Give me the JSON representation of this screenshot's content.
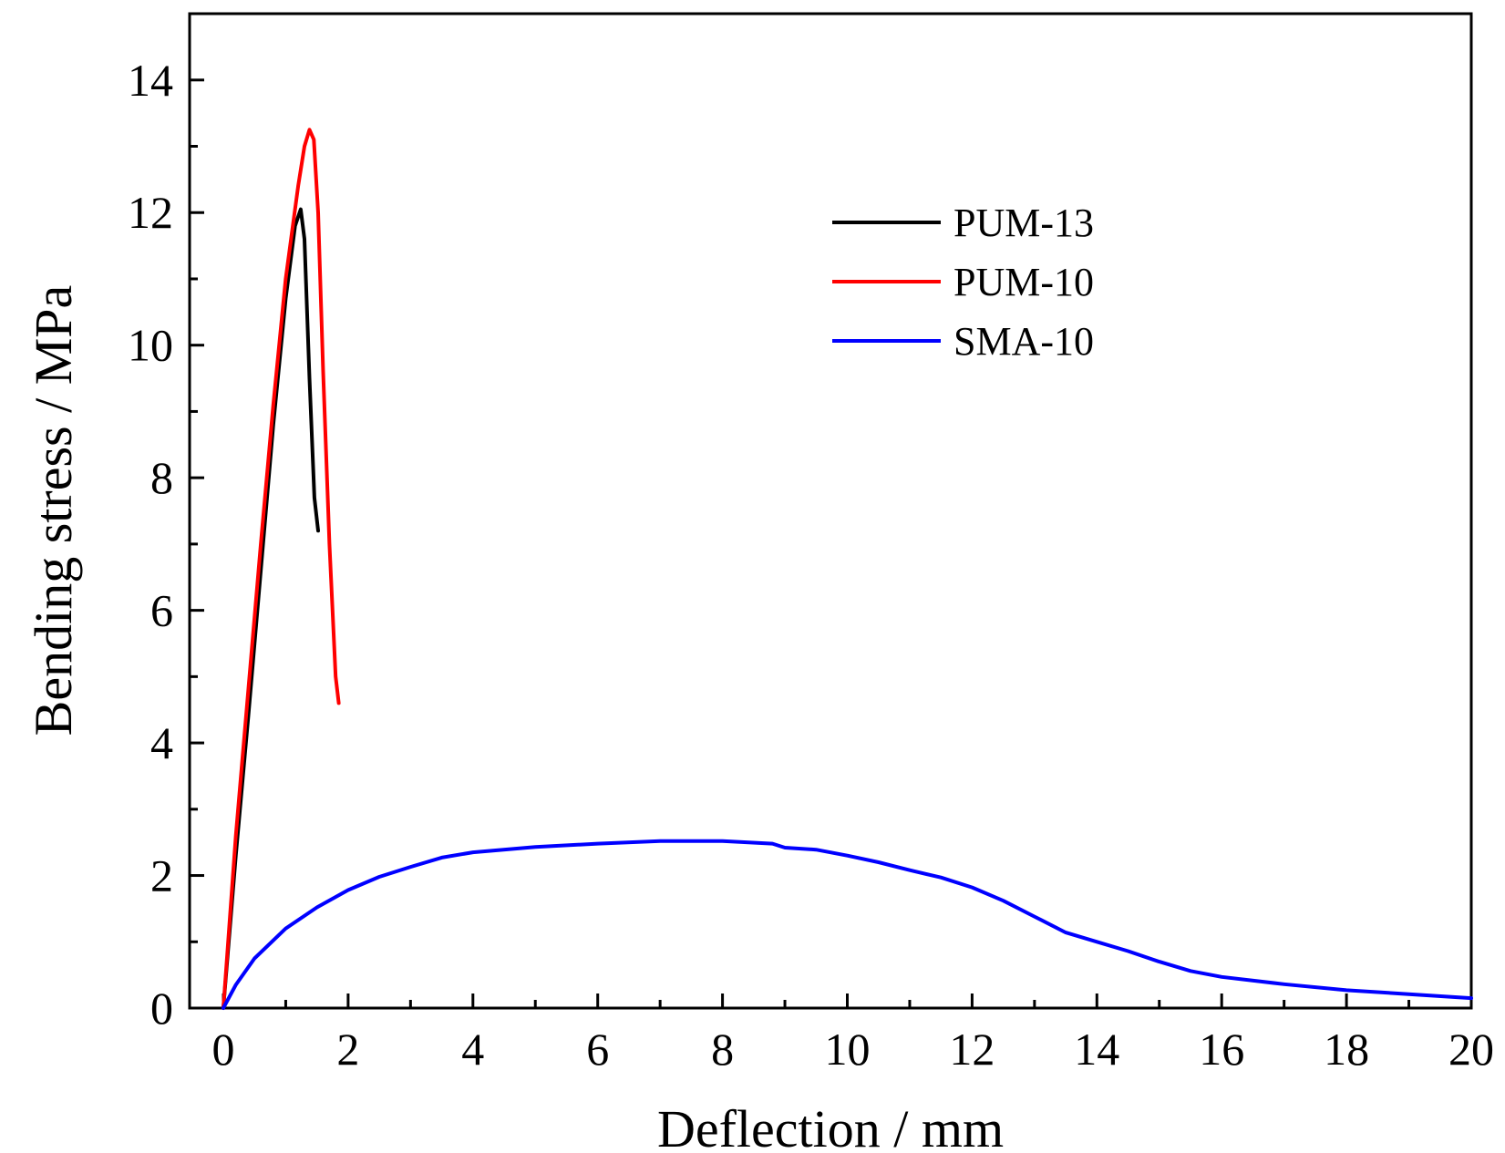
{
  "chart_data": {
    "type": "line",
    "title": "",
    "xlabel": "Deflection / mm",
    "ylabel": "Bending stress / MPa",
    "xlim": [
      -0.5,
      20
    ],
    "ylim": [
      0,
      15
    ],
    "x_major_ticks": [
      0,
      2,
      4,
      6,
      8,
      10,
      12,
      14,
      16,
      18,
      20
    ],
    "x_tick_labels": [
      "0",
      "2",
      "4",
      "6",
      "8",
      "10",
      "12",
      "14",
      "16",
      "18",
      "20"
    ],
    "y_major_ticks": [
      0,
      2,
      4,
      6,
      8,
      10,
      12,
      14
    ],
    "y_tick_labels": [
      "0",
      "2",
      "4",
      "6",
      "8",
      "10",
      "12",
      "14"
    ],
    "grid": false,
    "legend_position": "top-right",
    "series": [
      {
        "name": "PUM-13",
        "color": "#000000",
        "x": [
          0,
          0.2,
          0.4,
          0.6,
          0.8,
          1.0,
          1.15,
          1.24,
          1.3,
          1.38,
          1.46,
          1.52
        ],
        "y": [
          0,
          2.3,
          4.4,
          6.6,
          8.8,
          10.7,
          11.8,
          12.05,
          11.6,
          9.5,
          7.7,
          7.2
        ]
      },
      {
        "name": "PUM-10",
        "color": "#ff0000",
        "x": [
          0,
          0.2,
          0.4,
          0.6,
          0.8,
          1.0,
          1.2,
          1.3,
          1.38,
          1.45,
          1.52,
          1.6,
          1.7,
          1.8,
          1.85
        ],
        "y": [
          0,
          2.6,
          4.8,
          7.0,
          9.1,
          11.0,
          12.4,
          13.0,
          13.25,
          13.1,
          12.0,
          9.6,
          7.0,
          5.0,
          4.6
        ]
      },
      {
        "name": "SMA-10",
        "color": "#0000ff",
        "x": [
          0,
          0.2,
          0.5,
          1.0,
          1.5,
          2.0,
          2.5,
          3.0,
          3.5,
          4.0,
          5.0,
          6.0,
          7.0,
          8.0,
          8.8,
          9.0,
          9.5,
          10.0,
          10.5,
          11.0,
          11.5,
          12.0,
          12.5,
          13.0,
          13.5,
          14.0,
          14.5,
          15.0,
          15.5,
          16.0,
          17.0,
          18.0,
          19.0,
          20.0
        ],
        "y": [
          0,
          0.35,
          0.75,
          1.2,
          1.52,
          1.78,
          1.98,
          2.13,
          2.27,
          2.35,
          2.43,
          2.48,
          2.52,
          2.52,
          2.48,
          2.42,
          2.39,
          2.3,
          2.2,
          2.08,
          1.97,
          1.82,
          1.62,
          1.38,
          1.14,
          1.0,
          0.86,
          0.7,
          0.56,
          0.47,
          0.36,
          0.27,
          0.21,
          0.15
        ]
      }
    ]
  }
}
